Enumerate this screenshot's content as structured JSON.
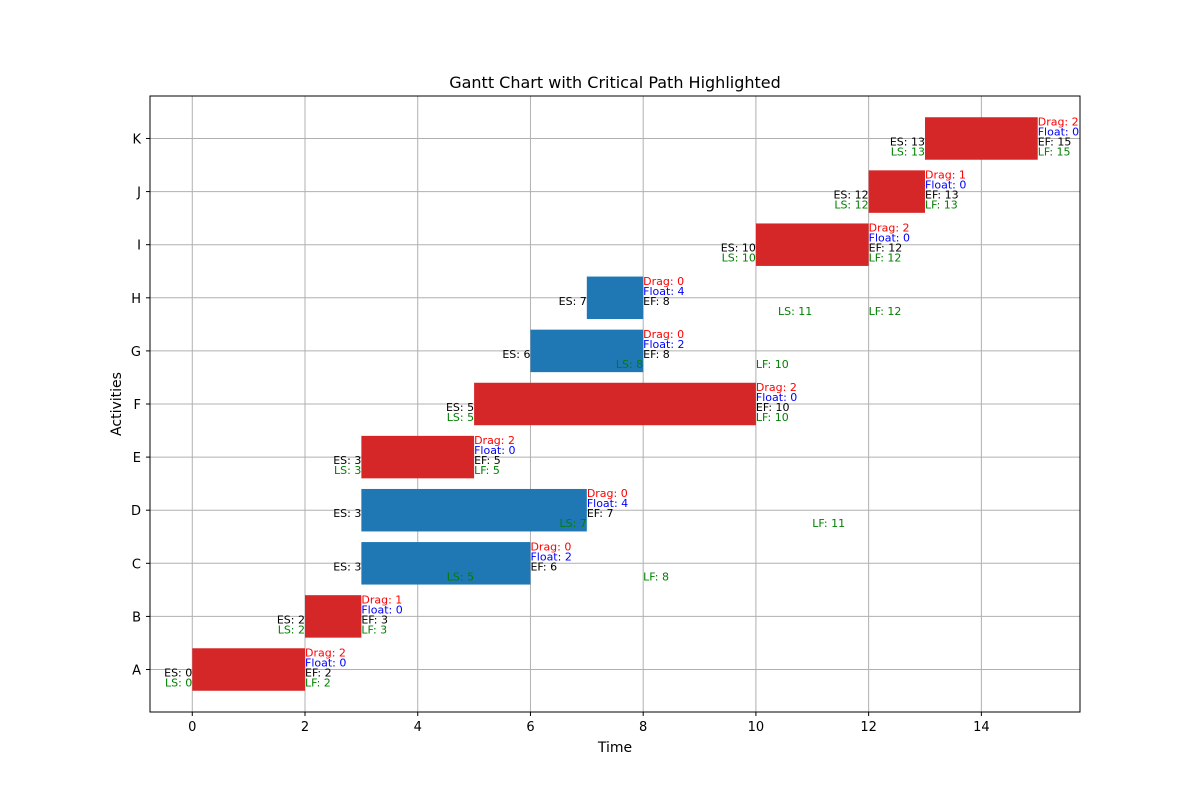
{
  "chart_data": {
    "type": "bar",
    "orientation": "horizontal",
    "title": "Gantt Chart with Critical Path Highlighted",
    "xlabel": "Time",
    "ylabel": "Activities",
    "xlim": [
      -0.75,
      15.75
    ],
    "xticks": [
      0,
      2,
      4,
      6,
      8,
      10,
      12,
      14
    ],
    "grid": true,
    "colors": {
      "critical": "#d62728",
      "non_critical": "#1f77b4",
      "drag": "#ff0000",
      "float": "#0000ff",
      "es_ef": "#000000",
      "ls_lf": "#008000",
      "grid": "#b0b0b0"
    },
    "activities": [
      {
        "name": "A",
        "start": 0,
        "duration": 2,
        "critical": true,
        "es": "ES: 0",
        "ef": "EF: 2",
        "ls": "LS: 0",
        "lf": "LF: 2",
        "drag": "Drag: 2",
        "float": "Float: 0",
        "ls_x": 0,
        "lf_x": 2
      },
      {
        "name": "B",
        "start": 2,
        "duration": 1,
        "critical": true,
        "es": "ES: 2",
        "ef": "EF: 3",
        "ls": "LS: 2",
        "lf": "LF: 3",
        "drag": "Drag: 1",
        "float": "Float: 0",
        "ls_x": 2,
        "lf_x": 3
      },
      {
        "name": "C",
        "start": 3,
        "duration": 3,
        "critical": false,
        "es": "ES: 3",
        "ef": "EF: 6",
        "ls": "LS: 5",
        "lf": "LF: 8",
        "drag": "Drag: 0",
        "float": "Float: 2",
        "ls_x": 5,
        "lf_x": 8
      },
      {
        "name": "D",
        "start": 3,
        "duration": 4,
        "critical": false,
        "es": "ES: 3",
        "ef": "EF: 7",
        "ls": "LS: 7",
        "lf": "LF: 11",
        "drag": "Drag: 0",
        "float": "Float: 4",
        "ls_x": 7,
        "lf_x": 11
      },
      {
        "name": "E",
        "start": 3,
        "duration": 2,
        "critical": true,
        "es": "ES: 3",
        "ef": "EF: 5",
        "ls": "LS: 3",
        "lf": "LF: 5",
        "drag": "Drag: 2",
        "float": "Float: 0",
        "ls_x": 3,
        "lf_x": 5
      },
      {
        "name": "F",
        "start": 5,
        "duration": 5,
        "critical": true,
        "es": "ES: 5",
        "ef": "EF: 10",
        "ls": "LS: 5",
        "lf": "LF: 10",
        "drag": "Drag: 2",
        "float": "Float: 0",
        "ls_x": 5,
        "lf_x": 10
      },
      {
        "name": "G",
        "start": 6,
        "duration": 2,
        "critical": false,
        "es": "ES: 6",
        "ef": "EF: 8",
        "ls": "LS: 8",
        "lf": "LF: 10",
        "drag": "Drag: 0",
        "float": "Float: 2",
        "ls_x": 8,
        "lf_x": 10
      },
      {
        "name": "H",
        "start": 7,
        "duration": 1,
        "critical": false,
        "es": "ES: 7",
        "ef": "EF: 8",
        "ls": "LS: 11",
        "lf": "LF: 12",
        "drag": "Drag: 0",
        "float": "Float: 4",
        "ls_x": 11,
        "lf_x": 12
      },
      {
        "name": "I",
        "start": 10,
        "duration": 2,
        "critical": true,
        "es": "ES: 10",
        "ef": "EF: 12",
        "ls": "LS: 10",
        "lf": "LF: 12",
        "drag": "Drag: 2",
        "float": "Float: 0",
        "ls_x": 10,
        "lf_x": 12
      },
      {
        "name": "J",
        "start": 12,
        "duration": 1,
        "critical": true,
        "es": "ES: 12",
        "ef": "EF: 13",
        "ls": "LS: 12",
        "lf": "LF: 13",
        "drag": "Drag: 1",
        "float": "Float: 0",
        "ls_x": 12,
        "lf_x": 13
      },
      {
        "name": "K",
        "start": 13,
        "duration": 2,
        "critical": true,
        "es": "ES: 13",
        "ef": "EF: 15",
        "ls": "LS: 13",
        "lf": "LF: 15",
        "drag": "Drag: 2",
        "float": "Float: 0",
        "ls_x": 13,
        "lf_x": 15
      }
    ]
  }
}
